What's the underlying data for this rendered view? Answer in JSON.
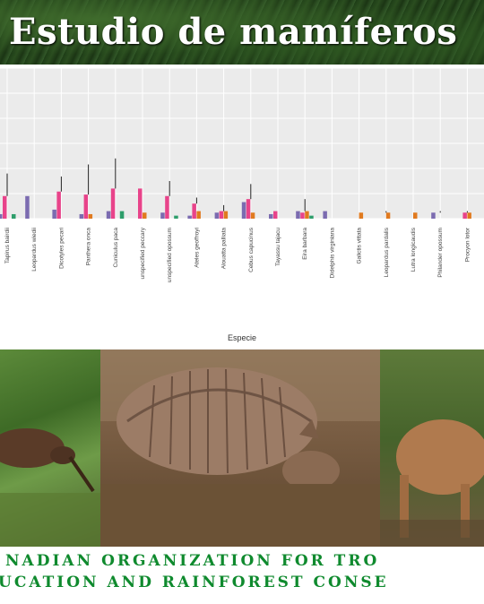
{
  "banner": {
    "title": "Estudio de mamíferos"
  },
  "chart_data": {
    "type": "bar",
    "xlabel": "Especie",
    "ylabel": "",
    "ylim": [
      0,
      1
    ],
    "grid": true,
    "categories": [
      "Tapirus bairdii",
      "Leopardus wiedii",
      "Dicotyles pecari",
      "Panthera onca",
      "Cuniculus paca",
      "unspecified peccary",
      "unspecified opossum",
      "Ateles geoffroyi",
      "Alouatta palliata",
      "Cebus capucinus",
      "Tayassu tajacu",
      "Eira barbara",
      "Didelphis virginiana",
      "Galictis vittata",
      "Leopardus pardalis",
      "Lutra longicaudis",
      "Philander opossum",
      "Procyon lotor"
    ],
    "series": [
      {
        "name": "",
        "color": "#7b6bb0",
        "values": [
          0.03,
          0.15,
          0.06,
          0.03,
          0.05,
          0.0,
          0.04,
          0.02,
          0.04,
          0.11,
          0.03,
          0.05,
          0.05,
          0.0,
          0.0,
          0.0,
          0.04,
          0.0
        ]
      },
      {
        "name": "",
        "color": "#e8438a",
        "values": [
          0.15,
          0.0,
          0.18,
          0.16,
          0.2,
          0.2,
          0.15,
          0.1,
          0.05,
          0.13,
          0.05,
          0.04,
          0.0,
          0.0,
          0.0,
          0.0,
          0.0,
          0.04
        ]
      },
      {
        "name": "",
        "color": "#e07a1f",
        "values": [
          0.0,
          0.0,
          0.0,
          0.03,
          0.0,
          0.04,
          0.0,
          0.05,
          0.05,
          0.04,
          0.0,
          0.05,
          0.0,
          0.04,
          0.04,
          0.04,
          0.0,
          0.04
        ]
      },
      {
        "name": "",
        "color": "#2e9e6b",
        "values": [
          0.03,
          0.0,
          0.0,
          0.0,
          0.05,
          0.0,
          0.02,
          0.0,
          0.0,
          0.0,
          0.0,
          0.02,
          0.0,
          0.0,
          0.0,
          0.0,
          0.0,
          0.0
        ]
      }
    ],
    "errors": [
      0.15,
      0,
      0.1,
      0.2,
      0.2,
      0,
      0.1,
      0.04,
      0.04,
      0.1,
      0,
      0.08,
      0,
      0,
      0.01,
      0,
      0.01,
      0.01
    ]
  },
  "photos": {
    "captions": [
      "",
      "",
      ""
    ]
  },
  "footer": {
    "line1": "NADIAN ORGANIZATION FOR TRO",
    "line2": "UCATION AND RAINFOREST CONSE"
  }
}
